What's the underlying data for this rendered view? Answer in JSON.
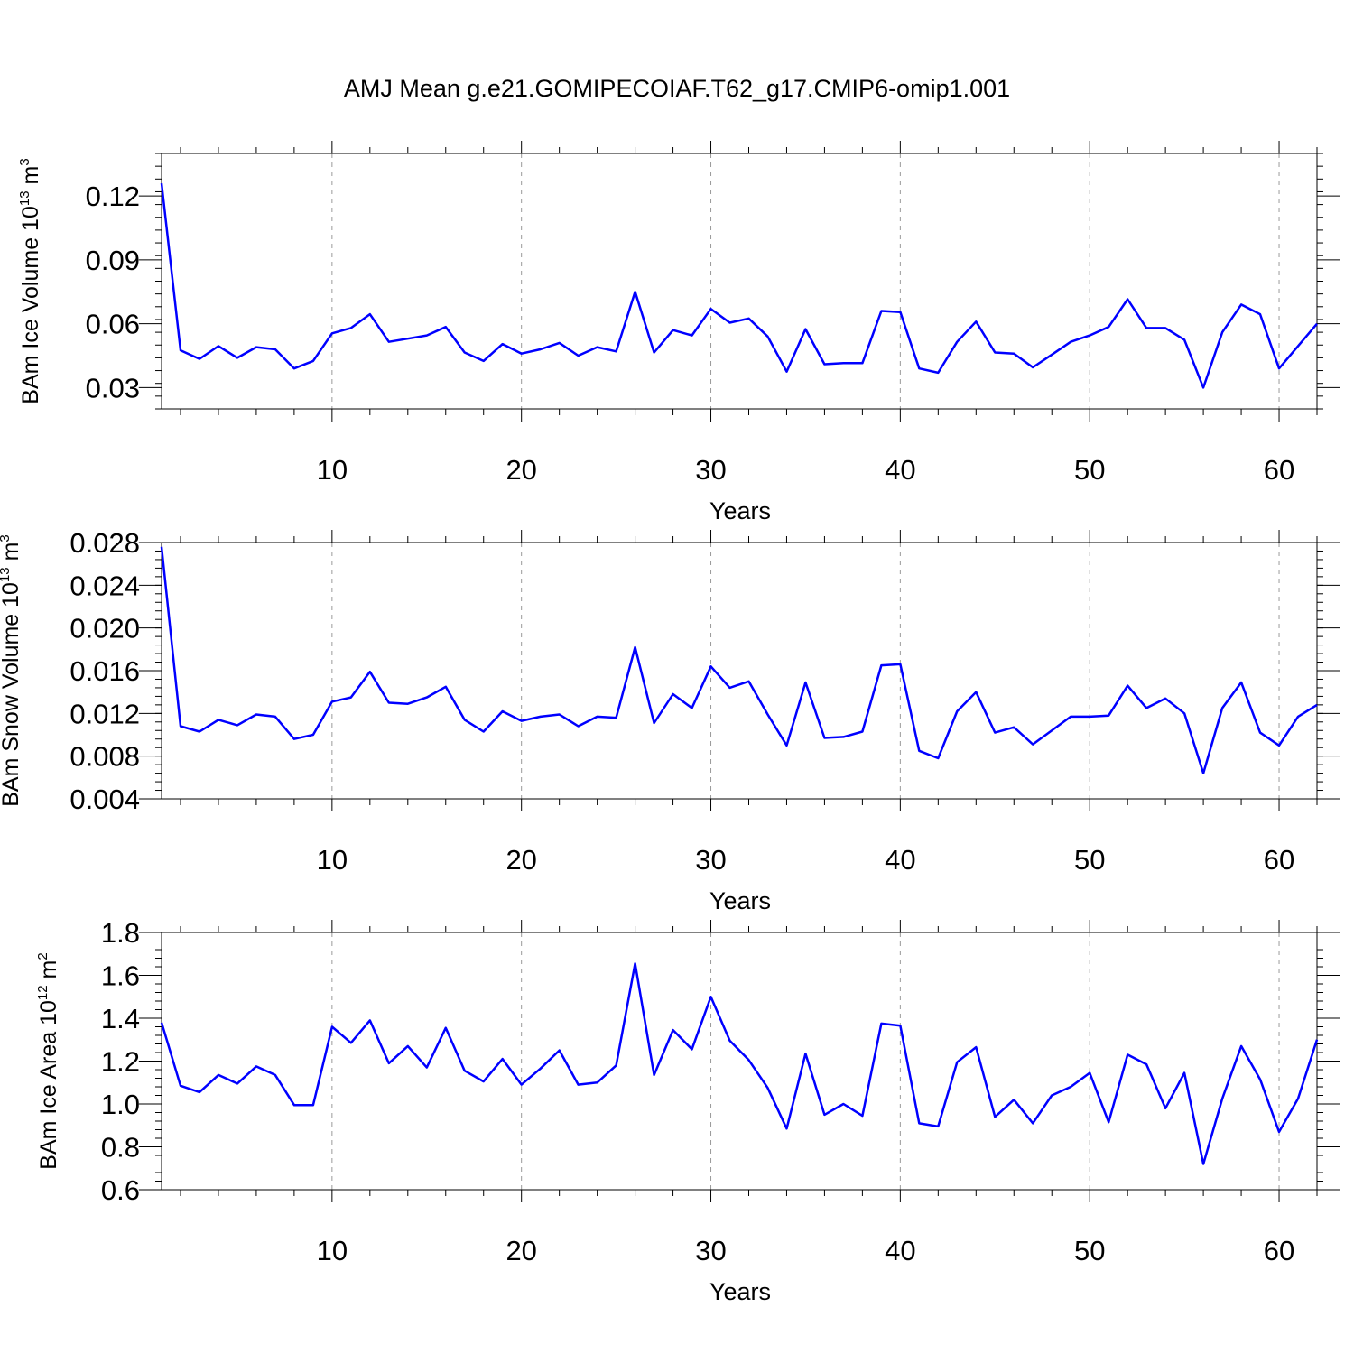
{
  "figure_title": "AMJ Mean g.e21.GOMIPECOIAF.T62_g17.CMIP6-omip1.001",
  "colors": {
    "line": "#0000ff",
    "grid": "#9a9a9a",
    "axes": "#000000"
  },
  "chart_data": [
    {
      "type": "line",
      "ylabel": {
        "text": "BAm Ice Volume 10",
        "sup": "13",
        "unit": " m",
        "unit_sup": "3"
      },
      "xlabel": "Years",
      "xlim": [
        1,
        62
      ],
      "ylim": [
        0.02,
        0.14
      ],
      "xticks": [
        10,
        20,
        30,
        40,
        50,
        60
      ],
      "xtick_labels": [
        "10",
        "20",
        "30",
        "40",
        "50",
        "60"
      ],
      "yticks": [
        0.03,
        0.06,
        0.09,
        0.12
      ],
      "ytick_labels": [
        "0.03",
        "0.06",
        "0.09",
        "0.12"
      ],
      "grid": "vertical dashed at major x ticks",
      "series": [
        {
          "x": [
            1,
            2,
            3,
            4,
            5,
            6,
            7,
            8,
            9,
            10,
            11,
            12,
            13,
            14,
            15,
            16,
            17,
            18,
            19,
            20,
            21,
            22,
            23,
            24,
            25,
            26,
            27,
            28,
            29,
            30,
            31,
            32,
            33,
            34,
            35,
            36,
            37,
            38,
            39,
            40,
            41,
            42,
            43,
            44,
            45,
            46,
            47,
            48,
            49,
            50,
            51,
            52,
            53,
            54,
            55,
            56,
            57,
            58,
            59,
            60,
            61,
            62
          ],
          "values": [
            0.126,
            0.0475,
            0.0435,
            0.0495,
            0.044,
            0.049,
            0.048,
            0.039,
            0.0425,
            0.0555,
            0.058,
            0.0645,
            0.0515,
            0.053,
            0.0545,
            0.0585,
            0.0465,
            0.0425,
            0.0505,
            0.046,
            0.048,
            0.051,
            0.045,
            0.049,
            0.047,
            0.075,
            0.0465,
            0.057,
            0.0545,
            0.067,
            0.0605,
            0.0625,
            0.054,
            0.0375,
            0.0575,
            0.041,
            0.0415,
            0.0415,
            0.066,
            0.0655,
            0.039,
            0.037,
            0.0515,
            0.061,
            0.0465,
            0.046,
            0.0395,
            0.0455,
            0.0515,
            0.0545,
            0.0585,
            0.0715,
            0.058,
            0.058,
            0.0525,
            0.03,
            0.056,
            0.069,
            0.0645,
            0.039,
            0.0495,
            0.06
          ]
        }
      ]
    },
    {
      "type": "line",
      "ylabel": {
        "text": "BAm Snow Volume 10",
        "sup": "13",
        "unit": " m",
        "unit_sup": "3"
      },
      "xlabel": "Years",
      "xlim": [
        1,
        62
      ],
      "ylim": [
        0.004,
        0.028
      ],
      "xticks": [
        10,
        20,
        30,
        40,
        50,
        60
      ],
      "xtick_labels": [
        "10",
        "20",
        "30",
        "40",
        "50",
        "60"
      ],
      "yticks": [
        0.004,
        0.008,
        0.012,
        0.016,
        0.02,
        0.024,
        0.028
      ],
      "ytick_labels": [
        "0.004",
        "0.008",
        "0.012",
        "0.016",
        "0.020",
        "0.024",
        "0.028"
      ],
      "grid": "vertical dashed at major x ticks",
      "series": [
        {
          "x": [
            1,
            2,
            3,
            4,
            5,
            6,
            7,
            8,
            9,
            10,
            11,
            12,
            13,
            14,
            15,
            16,
            17,
            18,
            19,
            20,
            21,
            22,
            23,
            24,
            25,
            26,
            27,
            28,
            29,
            30,
            31,
            32,
            33,
            34,
            35,
            36,
            37,
            38,
            39,
            40,
            41,
            42,
            43,
            44,
            45,
            46,
            47,
            48,
            49,
            50,
            51,
            52,
            53,
            54,
            55,
            56,
            57,
            58,
            59,
            60,
            61,
            62
          ],
          "values": [
            0.0276,
            0.0108,
            0.0103,
            0.0114,
            0.0109,
            0.0119,
            0.0117,
            0.0096,
            0.01,
            0.0131,
            0.0135,
            0.0159,
            0.013,
            0.0129,
            0.0135,
            0.0145,
            0.0114,
            0.0103,
            0.0122,
            0.0113,
            0.0117,
            0.0119,
            0.0108,
            0.0117,
            0.0116,
            0.0182,
            0.0111,
            0.0138,
            0.0125,
            0.0164,
            0.0144,
            0.015,
            0.0119,
            0.009,
            0.0149,
            0.0097,
            0.0098,
            0.0103,
            0.0165,
            0.0166,
            0.0085,
            0.0078,
            0.0122,
            0.014,
            0.0102,
            0.0107,
            0.0091,
            0.0104,
            0.0117,
            0.0117,
            0.0118,
            0.0146,
            0.0125,
            0.0134,
            0.012,
            0.0064,
            0.0125,
            0.0149,
            0.0102,
            0.009,
            0.0117,
            0.0128
          ]
        }
      ]
    },
    {
      "type": "line",
      "ylabel": {
        "text": "BAm Ice Area 10",
        "sup": "12",
        "unit": " m",
        "unit_sup": "2"
      },
      "xlabel": "Years",
      "xlim": [
        1,
        62
      ],
      "ylim": [
        0.6,
        1.8
      ],
      "xticks": [
        10,
        20,
        30,
        40,
        50,
        60
      ],
      "xtick_labels": [
        "10",
        "20",
        "30",
        "40",
        "50",
        "60"
      ],
      "yticks": [
        0.6,
        0.8,
        1.0,
        1.2,
        1.4,
        1.6,
        1.8
      ],
      "ytick_labels": [
        "0.6",
        "0.8",
        "1.0",
        "1.2",
        "1.4",
        "1.6",
        "1.8"
      ],
      "grid": "vertical dashed at major x ticks",
      "series": [
        {
          "x": [
            1,
            2,
            3,
            4,
            5,
            6,
            7,
            8,
            9,
            10,
            11,
            12,
            13,
            14,
            15,
            16,
            17,
            18,
            19,
            20,
            21,
            22,
            23,
            24,
            25,
            26,
            27,
            28,
            29,
            30,
            31,
            32,
            33,
            34,
            35,
            36,
            37,
            38,
            39,
            40,
            41,
            42,
            43,
            44,
            45,
            46,
            47,
            48,
            49,
            50,
            51,
            52,
            53,
            54,
            55,
            56,
            57,
            58,
            59,
            60,
            61,
            62
          ],
          "values": [
            1.38,
            1.085,
            1.055,
            1.135,
            1.095,
            1.175,
            1.135,
            0.995,
            0.995,
            1.36,
            1.285,
            1.39,
            1.19,
            1.27,
            1.17,
            1.355,
            1.155,
            1.105,
            1.21,
            1.09,
            1.165,
            1.25,
            1.09,
            1.1,
            1.18,
            1.655,
            1.135,
            1.345,
            1.255,
            1.5,
            1.295,
            1.205,
            1.075,
            0.885,
            1.235,
            0.95,
            1.0,
            0.945,
            1.375,
            1.365,
            0.91,
            0.895,
            1.195,
            1.265,
            0.94,
            1.02,
            0.91,
            1.04,
            1.08,
            1.145,
            0.915,
            1.23,
            1.185,
            0.98,
            1.145,
            0.72,
            1.025,
            1.27,
            1.115,
            0.87,
            1.025,
            1.3
          ]
        }
      ]
    }
  ]
}
